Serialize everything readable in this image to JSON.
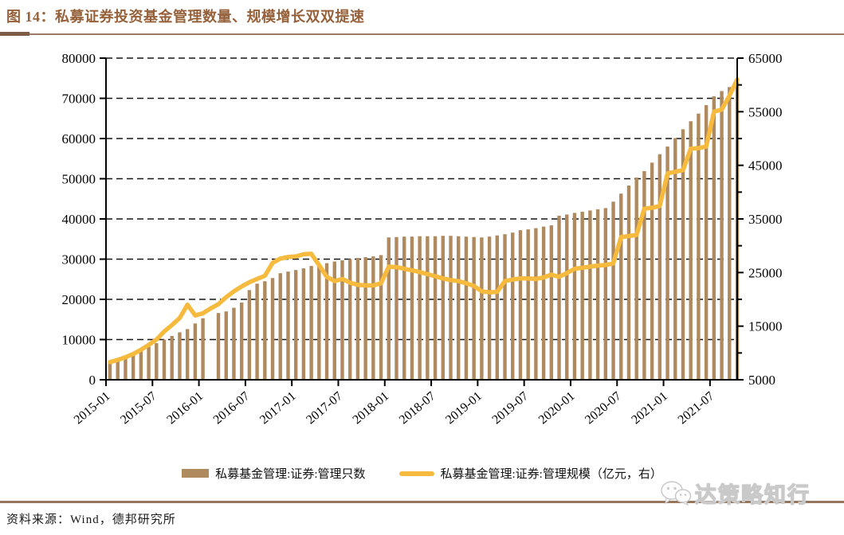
{
  "figure": {
    "title": "图 14：私募证券投资基金管理数量、规模增长双双提速",
    "source": "资料来源：Wind，德邦研究所",
    "watermark": "达策略知行"
  },
  "legend": [
    {
      "label": "私募基金管理:证券:管理只数",
      "swatch": "bar-swatch",
      "color": "#AE8A5E"
    },
    {
      "label": "私募基金管理:证券:管理规模（亿元，右）",
      "swatch": "line-swatch",
      "color": "#F6BA3F"
    }
  ],
  "chart_data": {
    "type": "bar",
    "subtype": "dual-axis bar + line, monthly",
    "title": "私募证券投资基金管理数量、规模增长双双提速",
    "grid": "dashed horizontal",
    "legend_position": "bottom-center",
    "x": [
      "2015-01",
      "2015-02",
      "2015-03",
      "2015-04",
      "2015-05",
      "2015-06",
      "2015-07",
      "2015-08",
      "2015-09",
      "2015-10",
      "2015-11",
      "2015-12",
      "2016-01",
      "2016-02",
      "2016-03",
      "2016-04",
      "2016-05",
      "2016-06",
      "2016-07",
      "2016-08",
      "2016-09",
      "2016-10",
      "2016-11",
      "2016-12",
      "2017-01",
      "2017-02",
      "2017-03",
      "2017-04",
      "2017-05",
      "2017-06",
      "2017-07",
      "2017-08",
      "2017-09",
      "2017-10",
      "2017-11",
      "2017-12",
      "2018-01",
      "2018-02",
      "2018-03",
      "2018-04",
      "2018-05",
      "2018-06",
      "2018-07",
      "2018-08",
      "2018-09",
      "2018-10",
      "2018-11",
      "2018-12",
      "2019-01",
      "2019-02",
      "2019-03",
      "2019-04",
      "2019-05",
      "2019-06",
      "2019-07",
      "2019-08",
      "2019-09",
      "2019-10",
      "2019-11",
      "2019-12",
      "2020-01",
      "2020-02",
      "2020-03",
      "2020-04",
      "2020-05",
      "2020-06",
      "2020-07",
      "2020-08",
      "2020-09",
      "2020-10",
      "2020-11",
      "2020-12",
      "2021-01",
      "2021-02",
      "2021-03",
      "2021-04",
      "2021-05",
      "2021-06",
      "2021-07",
      "2021-08",
      "2021-09",
      "2021-10"
    ],
    "x_tick_labels": [
      "2015-01",
      "2015-07",
      "2016-01",
      "2016-07",
      "2017-01",
      "2017-07",
      "2018-01",
      "2018-07",
      "2019-01",
      "2019-07",
      "2020-01",
      "2020-07",
      "2021-01",
      "2021-07"
    ],
    "series": [
      {
        "name": "私募基金管理:证券:管理只数",
        "type": "bar",
        "axis": "left",
        "color": "#AE8A5E",
        "values": [
          4300,
          4900,
          5600,
          6400,
          7300,
          8200,
          9100,
          10000,
          10900,
          11800,
          12600,
          14000,
          15300,
          null,
          16600,
          17000,
          17900,
          19200,
          22300,
          23900,
          24500,
          25300,
          26500,
          26900,
          27300,
          27700,
          28300,
          28600,
          29000,
          29400,
          29700,
          30000,
          30300,
          30500,
          30700,
          31000,
          35400,
          35500,
          35600,
          35600,
          35700,
          35700,
          35700,
          35800,
          35800,
          35700,
          35600,
          35500,
          35400,
          35600,
          35900,
          36200,
          36600,
          37200,
          37400,
          37700,
          38100,
          38400,
          40800,
          41100,
          41500,
          41800,
          42100,
          42400,
          42700,
          44300,
          46300,
          48300,
          50300,
          51900,
          54000,
          56100,
          58000,
          60100,
          62300,
          64300,
          66200,
          68300,
          70500,
          71800,
          72800,
          74000
        ]
      },
      {
        "name": "私募基金管理:证券:管理规模（亿元，右）",
        "type": "line",
        "axis": "right",
        "color": "#F6BA3F",
        "values": [
          8300,
          8700,
          9200,
          9800,
          10600,
          11500,
          12500,
          14000,
          15200,
          16500,
          19000,
          17000,
          17400,
          18300,
          19100,
          20400,
          21500,
          22400,
          23200,
          23800,
          24400,
          26800,
          27600,
          27900,
          28000,
          28400,
          28500,
          26400,
          24200,
          23400,
          23800,
          23100,
          22700,
          22600,
          22600,
          23000,
          26100,
          26000,
          25700,
          25400,
          25100,
          24700,
          24300,
          23900,
          23600,
          23400,
          23000,
          22500,
          21500,
          21300,
          21400,
          23400,
          23700,
          23900,
          23900,
          23800,
          24100,
          24600,
          24200,
          24900,
          25700,
          25900,
          26100,
          26300,
          26400,
          26700,
          31600,
          31800,
          32000,
          36900,
          37100,
          37400,
          43500,
          43800,
          44100,
          48100,
          48200,
          48500,
          55000,
          55400,
          58000,
          61000
        ]
      }
    ],
    "left_axis": {
      "min": 0,
      "max": 80000,
      "ticks": [
        0,
        10000,
        20000,
        30000,
        40000,
        50000,
        60000,
        70000,
        80000
      ]
    },
    "right_axis": {
      "min": 5000,
      "max": 65000,
      "ticks": [
        5000,
        15000,
        25000,
        35000,
        45000,
        55000,
        65000
      ],
      "minor_step": 5000
    }
  }
}
